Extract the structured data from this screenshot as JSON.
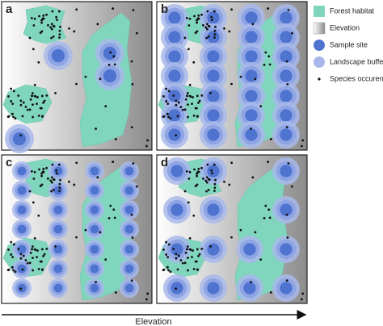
{
  "panels": [
    {
      "label": "a"
    },
    {
      "label": "b"
    },
    {
      "label": "c"
    },
    {
      "label": "d"
    }
  ],
  "legend": [
    "Forest habitat",
    "Elevation",
    "Sample site",
    "Landscape buffer",
    "Species occurence"
  ],
  "axis_label": "Elevation"
}
